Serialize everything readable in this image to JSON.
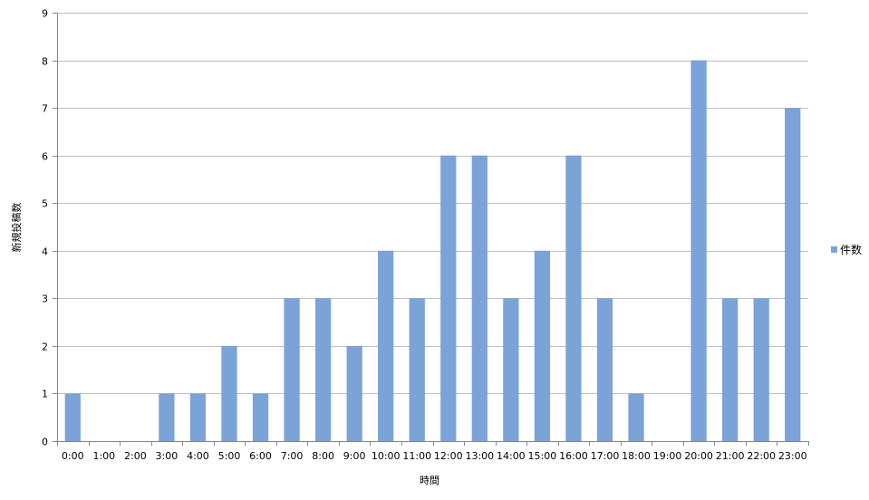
{
  "chart_data": {
    "type": "bar",
    "title": "",
    "xlabel": "時間",
    "ylabel": "新規投稿数",
    "categories": [
      "0:00",
      "1:00",
      "2:00",
      "3:00",
      "4:00",
      "5:00",
      "6:00",
      "7:00",
      "8:00",
      "9:00",
      "10:00",
      "11:00",
      "12:00",
      "13:00",
      "14:00",
      "15:00",
      "16:00",
      "17:00",
      "18:00",
      "19:00",
      "20:00",
      "21:00",
      "22:00",
      "23:00"
    ],
    "series": [
      {
        "name": "件数",
        "color": "#7ba3d8",
        "values": [
          1,
          0,
          0,
          1,
          1,
          2,
          1,
          3,
          3,
          2,
          4,
          3,
          6,
          6,
          3,
          4,
          6,
          3,
          1,
          0,
          8,
          3,
          3,
          7
        ]
      }
    ],
    "ylim": [
      0,
      9
    ],
    "yticks": [
      0,
      1,
      2,
      3,
      4,
      5,
      6,
      7,
      8,
      9
    ],
    "grid": true,
    "legend_position": "right",
    "colors": {
      "grid": "#c0c0c0",
      "axis": "#868686"
    }
  }
}
